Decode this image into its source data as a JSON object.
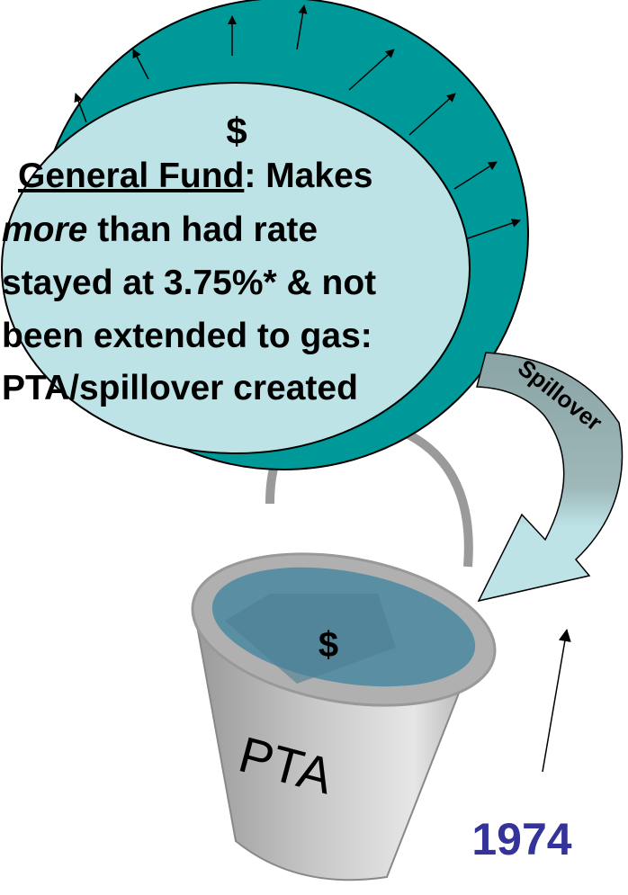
{
  "circle": {
    "symbol": "$",
    "term": "General Fund",
    "term_rest": ": Makes",
    "emphasis": "more",
    "emphasis_rest": " than had rate",
    "line3": "stayed at 3.75%* & not",
    "line4": "been extended to gas:",
    "line5": "PTA/spillover created"
  },
  "arrow": {
    "label": "Spillover"
  },
  "bucket": {
    "symbol": "$",
    "label": "PTA"
  },
  "year": "1974"
}
